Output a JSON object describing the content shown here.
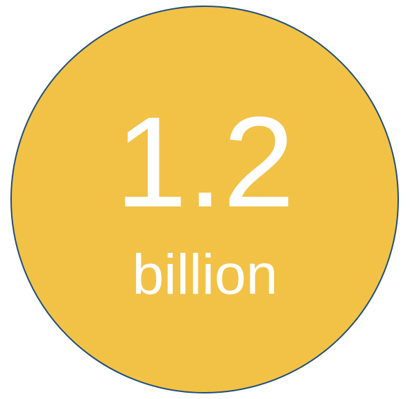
{
  "stat": {
    "value": "1.2",
    "unit": "billion"
  },
  "colors": {
    "circle_fill": "#f2c246",
    "circle_border": "#1f4e79",
    "text": "#ffffff"
  }
}
